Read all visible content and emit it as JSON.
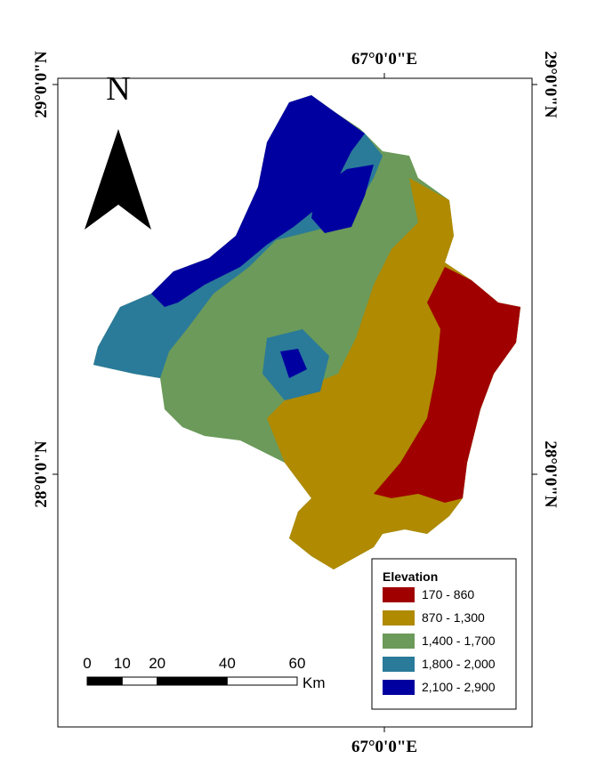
{
  "coordinates": {
    "top": "67°0'0\"E",
    "bottom": "67°0'0\"E",
    "left_top": "29°0'0\"N",
    "left_bottom": "28°0'0\"N",
    "right_top": "29°0'0\"N",
    "right_bottom": "28°0'0\"N"
  },
  "north_arrow": {
    "label": "N"
  },
  "legend": {
    "title": "Elevation",
    "items": [
      {
        "label": "170 - 860",
        "color": "#a00000"
      },
      {
        "label": "870 - 1,300",
        "color": "#b08a00"
      },
      {
        "label": "1,400 - 1,700",
        "color": "#6b9a5a"
      },
      {
        "label": "1,800 - 2,000",
        "color": "#2a7a9a"
      },
      {
        "label": "2,100 - 2,900",
        "color": "#0000a0"
      }
    ]
  },
  "scale_bar": {
    "ticks": [
      0,
      10,
      20,
      40,
      60
    ],
    "unit": "Km"
  }
}
